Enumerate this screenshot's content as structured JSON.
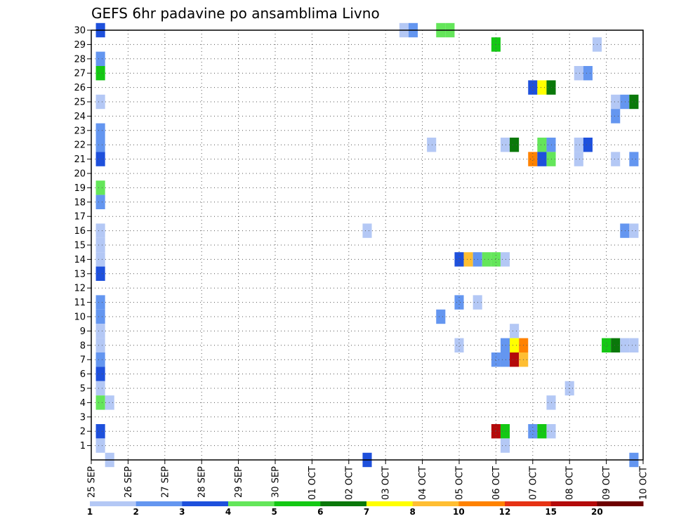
{
  "chart_data": {
    "type": "heatmap",
    "title": "GEFS 6hr padavine po ansamblima Livno",
    "xlabel": "",
    "ylabel": "",
    "x_tick_labels": [
      "25 SEP",
      "26 SEP",
      "27 SEP",
      "28 SEP",
      "29 SEP",
      "30 SEP",
      "01 OCT",
      "02 OCT",
      "03 OCT",
      "04 OCT",
      "05 OCT",
      "06 OCT",
      "07 OCT",
      "08 OCT",
      "09 OCT",
      "10 OCT"
    ],
    "y_tick_labels": [
      "1",
      "2",
      "3",
      "4",
      "5",
      "6",
      "7",
      "8",
      "9",
      "10",
      "11",
      "12",
      "13",
      "14",
      "15",
      "16",
      "17",
      "18",
      "19",
      "20",
      "21",
      "22",
      "23",
      "24",
      "25",
      "26",
      "27",
      "28",
      "29",
      "30"
    ],
    "xlim_steps": [
      0,
      60
    ],
    "ylim_members": [
      0,
      30
    ],
    "grid": true,
    "legend_placement": "bottom",
    "legend": {
      "thresholds": [
        "1",
        "2",
        "3",
        "4",
        "5",
        "6",
        "7",
        "8",
        "10",
        "12",
        "15",
        "20"
      ],
      "colors": [
        "#b4c8f5",
        "#6496f0",
        "#1e50dc",
        "#64e65a",
        "#14c814",
        "#0a780a",
        "#ffff00",
        "#ffbe32",
        "#ff8200",
        "#e63214",
        "#b40a0a",
        "#6e0000"
      ]
    },
    "cells": [
      [
        1,
        30,
        2
      ],
      [
        34,
        30,
        0
      ],
      [
        35,
        30,
        1
      ],
      [
        38,
        30,
        3
      ],
      [
        39,
        30,
        3
      ],
      [
        44,
        29,
        4
      ],
      [
        55,
        29,
        0
      ],
      [
        1,
        28,
        1
      ],
      [
        1,
        27,
        4
      ],
      [
        53,
        27,
        0
      ],
      [
        54,
        27,
        1
      ],
      [
        48,
        26,
        2
      ],
      [
        49,
        26,
        6
      ],
      [
        50,
        26,
        5
      ],
      [
        1,
        25,
        0
      ],
      [
        57,
        25,
        0
      ],
      [
        58,
        25,
        1
      ],
      [
        59,
        25,
        5
      ],
      [
        57,
        24,
        1
      ],
      [
        1,
        23,
        1
      ],
      [
        1,
        22,
        1
      ],
      [
        37,
        22,
        0
      ],
      [
        45,
        22,
        0
      ],
      [
        46,
        22,
        5
      ],
      [
        49,
        22,
        3
      ],
      [
        50,
        22,
        1
      ],
      [
        53,
        22,
        0
      ],
      [
        54,
        22,
        2
      ],
      [
        1,
        21,
        2
      ],
      [
        48,
        21,
        8
      ],
      [
        49,
        21,
        2
      ],
      [
        50,
        21,
        3
      ],
      [
        53,
        21,
        0
      ],
      [
        57,
        21,
        0
      ],
      [
        59,
        21,
        1
      ],
      [
        1,
        19,
        3
      ],
      [
        1,
        18,
        1
      ],
      [
        1,
        16,
        0
      ],
      [
        30,
        16,
        0
      ],
      [
        58,
        16,
        1
      ],
      [
        59,
        16,
        0
      ],
      [
        1,
        15,
        0
      ],
      [
        40,
        14,
        2
      ],
      [
        41,
        14,
        7
      ],
      [
        42,
        14,
        1
      ],
      [
        43,
        14,
        3
      ],
      [
        44,
        14,
        3
      ],
      [
        45,
        14,
        0
      ],
      [
        1,
        14,
        0
      ],
      [
        1,
        13,
        2
      ],
      [
        1,
        11,
        1
      ],
      [
        40,
        11,
        1
      ],
      [
        42,
        11,
        0
      ],
      [
        1,
        10,
        1
      ],
      [
        38,
        10,
        1
      ],
      [
        1,
        9,
        0
      ],
      [
        46,
        9,
        0
      ],
      [
        1,
        8,
        0
      ],
      [
        40,
        8,
        0
      ],
      [
        45,
        8,
        1
      ],
      [
        46,
        8,
        6
      ],
      [
        47,
        8,
        8
      ],
      [
        56,
        8,
        4
      ],
      [
        57,
        8,
        5
      ],
      [
        58,
        8,
        0
      ],
      [
        59,
        8,
        0
      ],
      [
        1,
        7,
        1
      ],
      [
        44,
        7,
        1
      ],
      [
        45,
        7,
        1
      ],
      [
        46,
        7,
        10
      ],
      [
        47,
        7,
        7
      ],
      [
        1,
        6,
        2
      ],
      [
        1,
        5,
        0
      ],
      [
        52,
        5,
        0
      ],
      [
        1,
        4,
        3
      ],
      [
        2,
        4,
        0
      ],
      [
        50,
        4,
        0
      ],
      [
        1,
        2,
        2
      ],
      [
        44,
        2,
        10
      ],
      [
        45,
        2,
        4
      ],
      [
        48,
        2,
        1
      ],
      [
        49,
        2,
        4
      ],
      [
        50,
        2,
        0
      ],
      [
        1,
        1,
        0
      ],
      [
        45,
        1,
        0
      ],
      [
        2,
        0,
        0
      ],
      [
        30,
        0,
        2
      ],
      [
        59,
        0,
        1
      ]
    ]
  }
}
